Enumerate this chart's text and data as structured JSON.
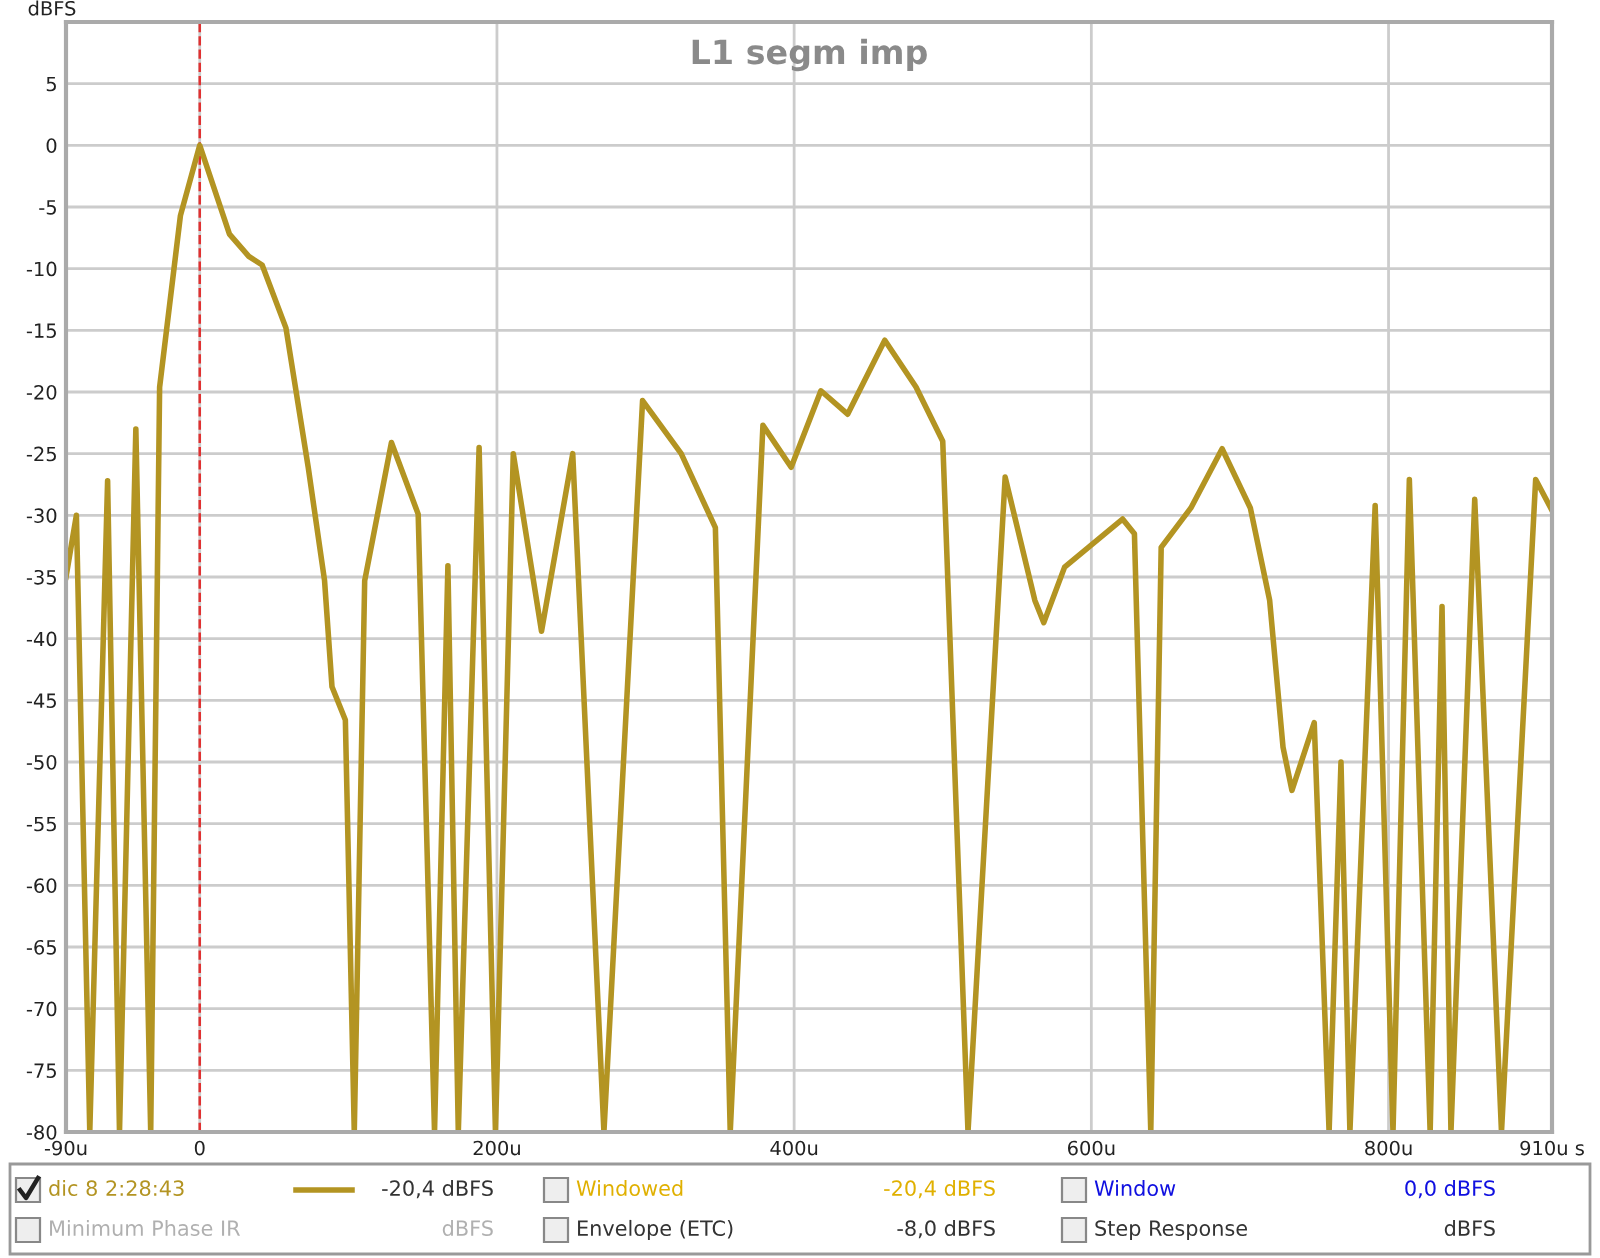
{
  "chart_data": {
    "type": "line",
    "title": "L1 segm imp",
    "ylabel": "dBFS",
    "x": [
      -90,
      -83,
      -74,
      -62,
      -54,
      -43,
      -33,
      -27,
      -13,
      0,
      20,
      33,
      42,
      58,
      73,
      84,
      89,
      98,
      104,
      111,
      129,
      147,
      158,
      167,
      174,
      188,
      199,
      211,
      230,
      251,
      272,
      298,
      324,
      347,
      357,
      379,
      398,
      418,
      436,
      461,
      482,
      500,
      517,
      542,
      562,
      568,
      582,
      609,
      621,
      629,
      640,
      647,
      667,
      688,
      707,
      720,
      729,
      735,
      750,
      760,
      768,
      774,
      791,
      803,
      814,
      828,
      836,
      842,
      858,
      876,
      899,
      910
    ],
    "series": [
      {
        "name": "dic 8 2:28:43",
        "color": "#b39422",
        "values": [
          -35,
          -30,
          -80,
          -27.2,
          -80,
          -23,
          -80,
          -19.6,
          -5.7,
          0,
          -7.2,
          -9,
          -9.7,
          -14.8,
          -26.1,
          -35.3,
          -43.9,
          -46.6,
          -80,
          -35.3,
          -24.1,
          -29.9,
          -80,
          -34.1,
          -80,
          -24.5,
          -80,
          -25,
          -39.4,
          -25,
          -80,
          -20.7,
          -25,
          -31,
          -80,
          -22.7,
          -26.1,
          -19.9,
          -21.8,
          -15.8,
          -19.6,
          -24,
          -80,
          -26.9,
          -36.9,
          -38.7,
          -34.2,
          -31.5,
          -30.3,
          -31.5,
          -80,
          -32.6,
          -29.4,
          -24.6,
          -29.4,
          -36.9,
          -48.8,
          -52.3,
          -46.8,
          -80,
          -50,
          -80,
          -29.2,
          -80,
          -27.1,
          -80,
          -37.4,
          -80,
          -28.7,
          -80,
          -27.1,
          -29.6
        ]
      }
    ],
    "xlim": [
      -90,
      910
    ],
    "ylim": [
      -80,
      10
    ],
    "xticks": [
      {
        "value": -90,
        "label": "-90u"
      },
      0,
      {
        "value": 200,
        "label": "200u"
      },
      {
        "value": 400,
        "label": "400u"
      },
      {
        "value": 600,
        "label": "600u"
      },
      {
        "value": 800,
        "label": "800u"
      },
      {
        "value": 910,
        "label": "910u s"
      }
    ],
    "yticks": [
      -80,
      -75,
      -70,
      -65,
      -60,
      -55,
      -50,
      -45,
      -40,
      -35,
      -30,
      -25,
      -20,
      -15,
      -10,
      -5,
      0,
      5
    ],
    "grid": true,
    "legend": "bottom",
    "marker": "none",
    "line_style": "solid",
    "ref_lines": [
      {
        "axis": "x",
        "value": 0,
        "color": "#e03030",
        "line_style": "dashed"
      }
    ],
    "annotations": [
      "-20,4 dBFS",
      "Windowed",
      "-20,4 dBFS",
      "Window",
      "0,0 dBFS",
      "Minimum Phase IR",
      "dBFS",
      "Envelope (ETC)",
      "-8,0 dBFS",
      "Step Response",
      "dBFS"
    ]
  }
}
